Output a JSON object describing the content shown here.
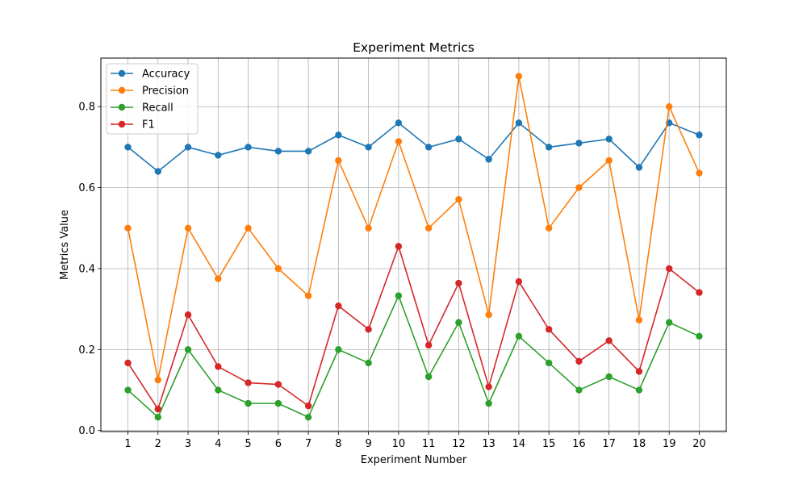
{
  "chart_data": {
    "type": "line",
    "title": "Experiment Metrics",
    "xlabel": "Experiment Number",
    "ylabel": "Metrics Value",
    "x": [
      1,
      2,
      3,
      4,
      5,
      6,
      7,
      8,
      9,
      10,
      11,
      12,
      13,
      14,
      15,
      16,
      17,
      18,
      19,
      20
    ],
    "xlim": [
      0.1,
      20.9
    ],
    "ylim": [
      -0.0025,
      0.92
    ],
    "yticks": [
      0.0,
      0.2,
      0.4,
      0.6,
      0.8
    ],
    "ytick_labels": [
      "0.0",
      "0.2",
      "0.4",
      "0.6",
      "0.8"
    ],
    "xtick_labels": [
      "1",
      "2",
      "3",
      "4",
      "5",
      "6",
      "7",
      "8",
      "9",
      "10",
      "11",
      "12",
      "13",
      "14",
      "15",
      "16",
      "17",
      "18",
      "19",
      "20"
    ],
    "grid": true,
    "legend_position": "upper left",
    "marker": "circle",
    "series": [
      {
        "name": "Accuracy",
        "color": "#1f77b4",
        "values": [
          0.7,
          0.64,
          0.7,
          0.68,
          0.7,
          0.69,
          0.69,
          0.73,
          0.7,
          0.76,
          0.7,
          0.72,
          0.67,
          0.76,
          0.7,
          0.71,
          0.72,
          0.65,
          0.76,
          0.73
        ]
      },
      {
        "name": "Precision",
        "color": "#ff7f0e",
        "values": [
          0.5,
          0.125,
          0.5,
          0.375,
          0.5,
          0.4,
          0.333,
          0.667,
          0.5,
          0.714,
          0.5,
          0.571,
          0.286,
          0.875,
          0.5,
          0.6,
          0.667,
          0.273,
          0.8,
          0.636
        ]
      },
      {
        "name": "Recall",
        "color": "#2ca02c",
        "values": [
          0.1,
          0.033,
          0.2,
          0.1,
          0.067,
          0.067,
          0.033,
          0.2,
          0.167,
          0.333,
          0.133,
          0.267,
          0.067,
          0.233,
          0.167,
          0.1,
          0.133,
          0.1,
          0.267,
          0.233
        ]
      },
      {
        "name": "F1",
        "color": "#d62728",
        "values": [
          0.167,
          0.053,
          0.286,
          0.158,
          0.118,
          0.114,
          0.061,
          0.308,
          0.25,
          0.455,
          0.211,
          0.364,
          0.108,
          0.368,
          0.25,
          0.171,
          0.222,
          0.146,
          0.4,
          0.341
        ]
      }
    ]
  }
}
